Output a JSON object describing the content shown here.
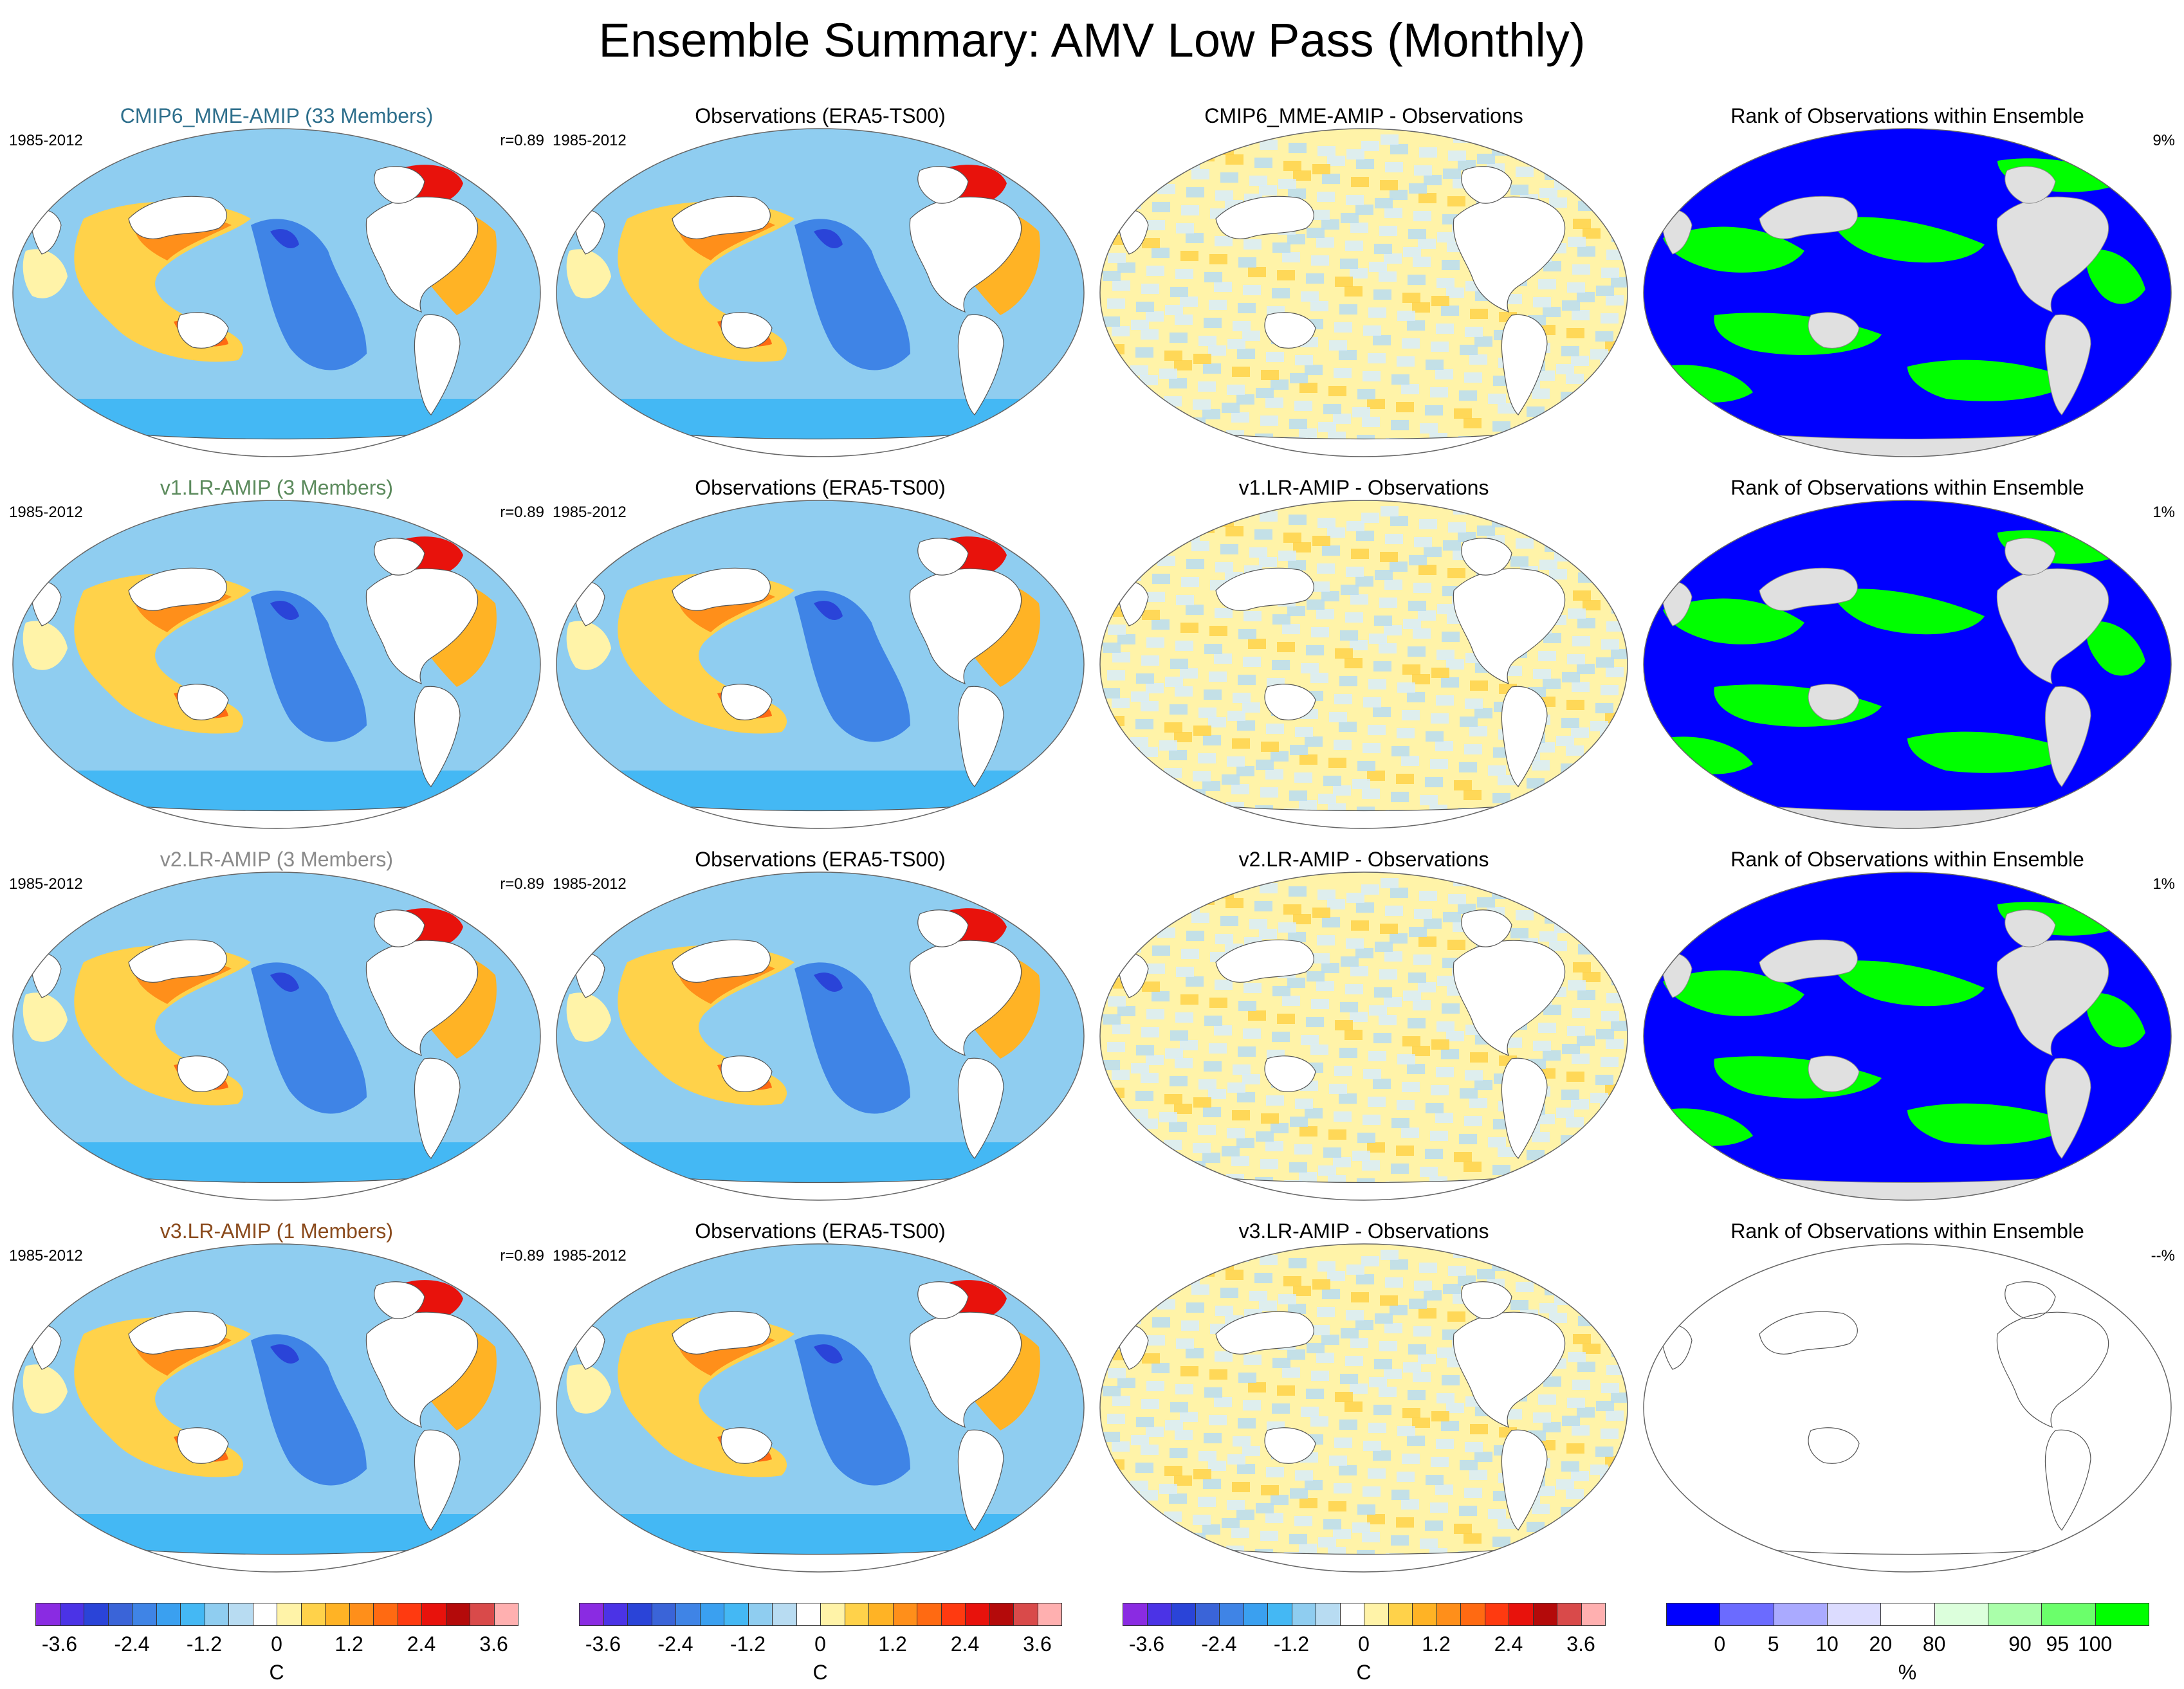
{
  "title": "Ensemble Summary: AMV Low Pass (Monthly)",
  "rows": [
    {
      "model": {
        "label": "CMIP6_MME-AMIP (33 Members)",
        "color": "#2e6f8c",
        "period": "1985-2012",
        "corr": "r=0.89"
      },
      "obs": {
        "label": "Observations (ERA5-TS00)",
        "period": "1985-2012"
      },
      "diff": {
        "label": "CMIP6_MME-AMIP - Observations"
      },
      "rank": {
        "label": "Rank of Observations within Ensemble",
        "pct": "9%"
      }
    },
    {
      "model": {
        "label": "v1.LR-AMIP (3 Members)",
        "color": "#5b8a5c",
        "period": "1985-2012",
        "corr": "r=0.89"
      },
      "obs": {
        "label": "Observations (ERA5-TS00)",
        "period": "1985-2012"
      },
      "diff": {
        "label": "v1.LR-AMIP - Observations"
      },
      "rank": {
        "label": "Rank of Observations within Ensemble",
        "pct": "1%"
      }
    },
    {
      "model": {
        "label": "v2.LR-AMIP (3 Members)",
        "color": "#8a8a8a",
        "period": "1985-2012",
        "corr": "r=0.89"
      },
      "obs": {
        "label": "Observations (ERA5-TS00)",
        "period": "1985-2012"
      },
      "diff": {
        "label": "v2.LR-AMIP - Observations"
      },
      "rank": {
        "label": "Rank of Observations within Ensemble",
        "pct": "1%"
      }
    },
    {
      "model": {
        "label": "v3.LR-AMIP (1 Members)",
        "color": "#8a4a1c",
        "period": "1985-2012",
        "corr": "r=0.89"
      },
      "obs": {
        "label": "Observations (ERA5-TS00)",
        "period": "1985-2012"
      },
      "diff": {
        "label": "v3.LR-AMIP - Observations"
      },
      "rank": {
        "label": "Rank of Observations within Ensemble",
        "pct": "--%"
      }
    }
  ],
  "colorbars": {
    "temperature": {
      "unit": "C",
      "ticks": [
        "-3.6",
        "-2.4",
        "-1.2",
        "0",
        "1.2",
        "2.4",
        "3.6"
      ],
      "colors": [
        "#8a2be2",
        "#4b33e6",
        "#2a44d8",
        "#3a64d8",
        "#3f84e6",
        "#3aa0f0",
        "#44b8f4",
        "#8fcdf0",
        "#b8dcf2",
        "#ffffff",
        "#fff3a8",
        "#ffd24a",
        "#ffb325",
        "#ff8f1a",
        "#ff6a12",
        "#ff3a10",
        "#e8120c",
        "#b40a0a",
        "#d94a4a",
        "#ffb0b0"
      ]
    },
    "rank": {
      "unit": "%",
      "ticks": [
        "0",
        "5",
        "10",
        "20",
        "80",
        "90",
        "95",
        "100"
      ],
      "colors": [
        "#0000ff",
        "#6b6bff",
        "#aaaaff",
        "#dcdcff",
        "#ffffff",
        "#dcffdc",
        "#aaffaa",
        "#6bff6b",
        "#00ff00"
      ]
    }
  }
}
